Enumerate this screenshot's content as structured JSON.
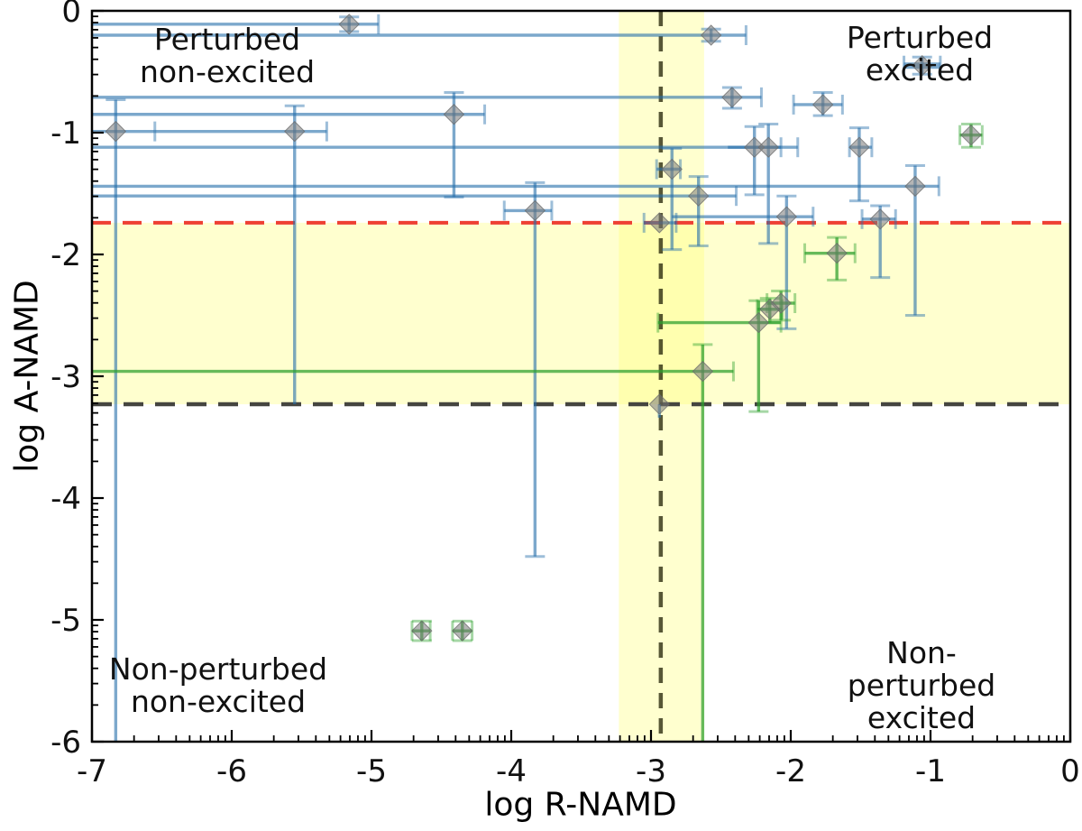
{
  "chart_data": {
    "type": "scatter",
    "title": "",
    "xlabel": "log R-NAMD",
    "ylabel": "log A-NAMD",
    "xlim": [
      -7,
      0
    ],
    "ylim": [
      -6,
      0
    ],
    "x_ticks": [
      -7,
      -6,
      -5,
      -4,
      -3,
      -2,
      -1,
      0
    ],
    "y_ticks": [
      0,
      -1,
      -2,
      -3,
      -4,
      -5,
      -6
    ],
    "minor_ticks": "log-decade pattern (offsets log10(2..9) below each major)",
    "grid": false,
    "legend": "none",
    "quadrant_labels": {
      "top_left": "Perturbed\nnon-excited",
      "top_right": "Perturbed\nexcited",
      "bottom_left": "Non-perturbed\nnon-excited",
      "bottom_right": "Non-perturbed\nexcited"
    },
    "reference_lines": {
      "red_dashed_hline_y": -1.74,
      "black_dashed_hline_y": -3.23,
      "dark_dashed_vline_x": -2.93
    },
    "shaded_bands": {
      "horizontal_y": [
        -3.23,
        -1.74
      ],
      "vertical_x": [
        -3.23,
        -2.62
      ]
    },
    "series": [
      {
        "name": "blue-errorbar-set",
        "points": [
          {
            "x": -5.16,
            "y": -0.11,
            "xl": -7,
            "cl": 0,
            "xr": -4.95,
            "cr": 1,
            "yb": -0.17,
            "cb": 1,
            "yt": -0.05,
            "ct": 1
          },
          {
            "x": -2.57,
            "y": -0.2,
            "xl": -7,
            "cl": 0,
            "xr": -2.32,
            "cr": 1,
            "yb": -0.25,
            "cb": 1,
            "yt": -0.15,
            "ct": 1
          },
          {
            "x": -1.06,
            "y": -0.45,
            "xl": -1.19,
            "cl": 1,
            "xr": -0.93,
            "cr": 1,
            "yb": -0.52,
            "cb": 1,
            "yt": -0.38,
            "ct": 1,
            "lw": 7
          },
          {
            "x": -2.42,
            "y": -0.71,
            "xl": -7,
            "cl": 0,
            "xr": -2.21,
            "cr": 1,
            "yb": -0.8,
            "cb": 1,
            "yt": -0.63,
            "ct": 1
          },
          {
            "x": -1.77,
            "y": -0.77,
            "xl": -1.98,
            "cl": 1,
            "xr": -1.63,
            "cr": 1,
            "yb": -0.86,
            "cb": 1,
            "yt": -0.67,
            "ct": 1
          },
          {
            "x": -4.41,
            "y": -0.85,
            "xl": -7,
            "cl": 0,
            "xr": -4.19,
            "cr": 1,
            "yb": -1.53,
            "cb": 1,
            "yt": -0.67,
            "ct": 1
          },
          {
            "x": -6.83,
            "y": -0.99,
            "xl": -7,
            "cl": 0,
            "xr": -6.55,
            "cr": 1,
            "yb": -6.0,
            "cb": 0,
            "yt": -0.73,
            "ct": 1
          },
          {
            "x": -5.55,
            "y": -0.99,
            "xl": -6.55,
            "cl": 0,
            "xr": -5.32,
            "cr": 1,
            "yb": -3.23,
            "cb": 0,
            "yt": -0.78,
            "ct": 1
          },
          {
            "x": -2.26,
            "y": -1.12,
            "xl": -7,
            "cl": 0,
            "xr": -2.07,
            "cr": 1,
            "yb": -1.51,
            "cb": 1,
            "yt": -0.95,
            "ct": 1
          },
          {
            "x": -2.16,
            "y": -1.12,
            "xl": -2.45,
            "cl": 0,
            "xr": -1.95,
            "cr": 1,
            "yb": -1.91,
            "cb": 1,
            "yt": -0.93,
            "ct": 1
          },
          {
            "x": -1.51,
            "y": -1.12,
            "xl": -1.58,
            "cl": 1,
            "xr": -1.42,
            "cr": 1,
            "yb": -1.56,
            "cb": 1,
            "yt": -0.96,
            "ct": 1
          },
          {
            "x": -2.85,
            "y": -1.3,
            "xl": -2.96,
            "cl": 1,
            "xr": -2.79,
            "cr": 1,
            "yb": -1.96,
            "cb": 1,
            "yt": -1.13,
            "ct": 1
          },
          {
            "x": -1.11,
            "y": -1.44,
            "xl": -7,
            "cl": 0,
            "xr": -0.94,
            "cr": 1,
            "yb": -2.5,
            "cb": 1,
            "yt": -1.27,
            "ct": 1
          },
          {
            "x": -2.66,
            "y": -1.52,
            "xl": -7,
            "cl": 0,
            "xr": -2.39,
            "cr": 1,
            "yb": -1.93,
            "cb": 1,
            "yt": -1.36,
            "ct": 1
          },
          {
            "x": -3.83,
            "y": -1.64,
            "xl": -4.05,
            "cl": 1,
            "xr": -3.71,
            "cr": 1,
            "yb": -4.48,
            "cb": 1,
            "yt": -1.41,
            "ct": 1
          },
          {
            "x": -2.03,
            "y": -1.69,
            "xl": -2.85,
            "cl": 0,
            "xr": -1.84,
            "cr": 1,
            "yb": -2.61,
            "cb": 1,
            "yt": -1.52,
            "ct": 1
          },
          {
            "x": -1.36,
            "y": -1.71,
            "xl": -1.49,
            "cl": 1,
            "xr": -1.25,
            "cr": 1,
            "yb": -2.19,
            "cb": 1,
            "yt": -1.6,
            "ct": 1
          },
          {
            "x": -2.94,
            "y": -1.74,
            "xl": -3.05,
            "cl": 1,
            "xr": -2.82,
            "cr": 1,
            "yb": -1.74,
            "cb": 0,
            "yt": -1.74,
            "ct": 0
          },
          {
            "x": -2.94,
            "y": -3.23,
            "xl": -2.94,
            "cl": 0,
            "xr": -2.94,
            "cr": 0,
            "yb": -3.34,
            "cb": 0,
            "yt": -3.23,
            "ct": 0
          }
        ]
      },
      {
        "name": "green-errorbar-set",
        "points": [
          {
            "x": -0.71,
            "y": -1.02,
            "xl": -0.79,
            "cl": 1,
            "xr": -0.63,
            "cr": 1,
            "yb": -1.12,
            "cb": 1,
            "yt": -0.93,
            "ct": 1
          },
          {
            "x": -1.67,
            "y": -1.99,
            "xl": -1.9,
            "cl": 1,
            "xr": -1.54,
            "cr": 1,
            "yb": -2.21,
            "cb": 1,
            "yt": -1.86,
            "ct": 1
          },
          {
            "x": -2.07,
            "y": -2.4,
            "xl": -2.17,
            "cl": 1,
            "xr": -1.97,
            "cr": 1,
            "yb": -2.54,
            "cb": 1,
            "yt": -2.3,
            "ct": 1
          },
          {
            "x": -2.15,
            "y": -2.45,
            "xl": -2.24,
            "cl": 1,
            "xr": -2.06,
            "cr": 1,
            "yb": -2.56,
            "cb": 1,
            "yt": -2.36,
            "ct": 1
          },
          {
            "x": -2.23,
            "y": -2.56,
            "xl": -2.95,
            "cl": 1,
            "xr": -2.07,
            "cr": 1,
            "yb": -3.29,
            "cb": 1,
            "yt": -2.38,
            "ct": 1
          },
          {
            "x": -2.63,
            "y": -2.96,
            "xl": -7,
            "cl": 0,
            "xr": -2.41,
            "cr": 1,
            "yb": -6.0,
            "cb": 0,
            "yt": -2.74,
            "ct": 1
          },
          {
            "x": -4.64,
            "y": -5.09,
            "xl": -4.71,
            "cl": 1,
            "xr": -4.58,
            "cr": 1,
            "yb": -5.17,
            "cb": 1,
            "yt": -5.01,
            "ct": 1
          },
          {
            "x": -4.35,
            "y": -5.09,
            "xl": -4.42,
            "cl": 1,
            "xr": -4.28,
            "cr": 1,
            "yb": -5.17,
            "cb": 1,
            "yt": -5.01,
            "ct": 1
          }
        ]
      }
    ]
  },
  "colors": {
    "blue_bar": "rgba(37,110,170,0.60)",
    "blue_cap": "rgba(37,110,170,0.45)",
    "green_bar": "rgba(44,160,44,0.72)",
    "green_cap": "rgba(44,160,44,0.42)",
    "marker_fill": "rgba(120,120,120,0.55)",
    "marker_edge": "rgba(105,105,105,0.75)",
    "red_line": "#ee3f33",
    "black_hline": "#454540",
    "dark_vline": "rgba(45,45,15,0.80)",
    "band_yellow": "rgba(255,255,110,0.33)",
    "axis": "#000000",
    "text": "#111111"
  }
}
